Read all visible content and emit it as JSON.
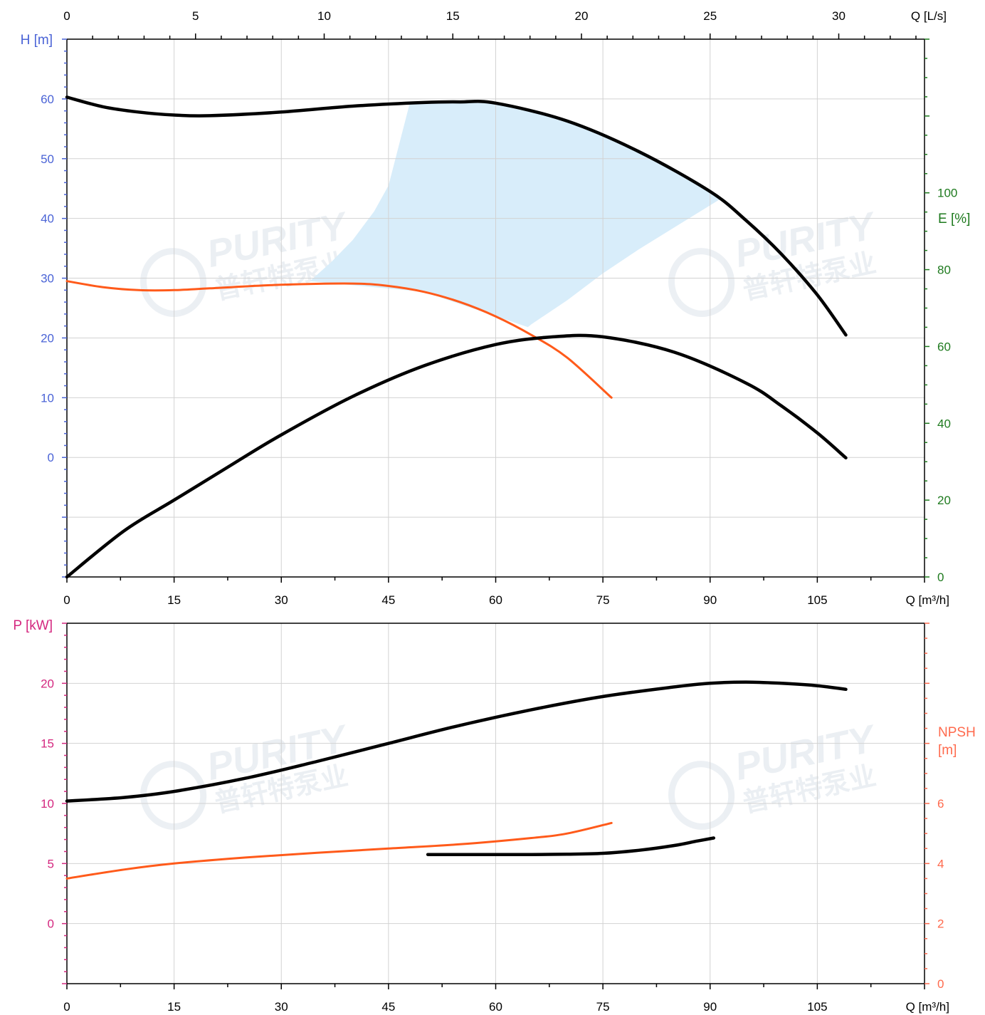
{
  "watermark": {
    "brand": "PURITY",
    "brand_cn": "普轩特泵业"
  },
  "colors": {
    "head_axis": "#4a63d6",
    "eff_axis": "#1e7a1e",
    "power_axis": "#d4277f",
    "npsh_axis": "#ff6a4d",
    "black_curve": "#000000",
    "orange_curve": "#ff5a1a",
    "operating_region": "#d8edfa",
    "grid": "#d2d2d2"
  },
  "chart_data": [
    {
      "type": "line",
      "title": "",
      "x_axis": {
        "label": "Q [m³/h]",
        "range": [
          0,
          120
        ],
        "ticks": [
          0,
          15,
          30,
          45,
          60,
          75,
          90,
          105
        ]
      },
      "x2_axis": {
        "label": "Q [L/s]",
        "range": [
          0,
          33.333
        ],
        "ticks": [
          0,
          5,
          10,
          15,
          20,
          25,
          30
        ]
      },
      "y_axis": {
        "label": "H [m]",
        "range": [
          -20,
          70
        ],
        "ticks": [
          0,
          10,
          20,
          30,
          40,
          50,
          60
        ]
      },
      "y2_axis": {
        "label": "E [%]",
        "range": [
          0,
          140
        ],
        "ticks": [
          0,
          20,
          40,
          60,
          80,
          100
        ]
      },
      "grid": true,
      "series": [
        {
          "axis": "H",
          "color": "black",
          "x": [
            0,
            5,
            10,
            15,
            20,
            30,
            40,
            50,
            55,
            60,
            70,
            80,
            90,
            95,
            100,
            105,
            109
          ],
          "y": [
            60.3,
            58.7,
            57.8,
            57.3,
            57.2,
            57.8,
            58.8,
            59.4,
            59.5,
            59.3,
            56.3,
            51.2,
            44.5,
            39.7,
            34.0,
            27.2,
            20.5
          ]
        },
        {
          "axis": "H",
          "color": "orange",
          "x": [
            0,
            5,
            10,
            15,
            20,
            30,
            40,
            45,
            50,
            55,
            60,
            65,
            70,
            76.2
          ],
          "y": [
            29.5,
            28.5,
            28.0,
            28.0,
            28.3,
            28.9,
            29.1,
            28.7,
            27.7,
            26.0,
            23.6,
            20.5,
            16.7,
            10.0
          ]
        },
        {
          "axis": "E",
          "color": "black",
          "x": [
            0,
            8,
            15,
            22,
            30,
            40,
            50,
            60,
            68,
            75,
            85,
            95,
            100,
            105,
            109
          ],
          "y": [
            0,
            12,
            20,
            28,
            37,
            47,
            55,
            60.5,
            62.5,
            62.5,
            58.5,
            50.5,
            44.5,
            37.5,
            31
          ]
        }
      ],
      "operating_region": {
        "axis": "H",
        "polygon": [
          [
            34,
            29.5
          ],
          [
            37,
            32.7
          ],
          [
            40,
            36.4
          ],
          [
            43,
            41.2
          ],
          [
            45,
            45.5
          ],
          [
            48,
            59.4
          ],
          [
            60,
            59.3
          ],
          [
            70,
            56.3
          ],
          [
            80,
            51.2
          ],
          [
            91.5,
            43.3
          ],
          [
            85,
            38.5
          ],
          [
            80,
            34.8
          ],
          [
            75,
            30.8
          ],
          [
            70,
            26.3
          ],
          [
            65,
            22.3
          ],
          [
            64.5,
            21.8
          ],
          [
            50,
            27.7
          ]
        ]
      }
    },
    {
      "type": "line",
      "title": "",
      "x_axis": {
        "label": "Q [m³/h]",
        "range": [
          0,
          120
        ],
        "ticks": [
          0,
          15,
          30,
          45,
          60,
          75,
          90,
          105
        ]
      },
      "y_axis": {
        "label": "P [kW]",
        "range": [
          -5,
          25
        ],
        "ticks": [
          0,
          5,
          10,
          15,
          20
        ]
      },
      "y2_axis": {
        "label_line1": "NPSH",
        "label_line2": "[m]",
        "range": [
          0,
          12
        ],
        "ticks": [
          0,
          2,
          4,
          6
        ]
      },
      "grid": true,
      "series": [
        {
          "axis": "P",
          "color": "black",
          "x": [
            0,
            8,
            15,
            25,
            35,
            45,
            55,
            65,
            75,
            85,
            90,
            95,
            100,
            105,
            109
          ],
          "y": [
            10.2,
            10.5,
            11.0,
            12.1,
            13.5,
            15.0,
            16.5,
            17.8,
            18.9,
            19.7,
            20.0,
            20.1,
            20.0,
            19.8,
            19.5
          ]
        },
        {
          "axis": "NPSH",
          "color": "black",
          "x": [
            50.5,
            55,
            60,
            65,
            70,
            75,
            80,
            85,
            88,
            90.5
          ],
          "y": [
            4.3,
            4.3,
            4.3,
            4.3,
            4.31,
            4.34,
            4.44,
            4.6,
            4.74,
            4.85
          ]
        },
        {
          "axis": "NPSH",
          "color": "orange",
          "x": [
            0,
            8,
            15,
            25,
            35,
            45,
            55,
            65,
            70,
            76.2
          ],
          "y": [
            3.5,
            3.8,
            4.0,
            4.2,
            4.36,
            4.5,
            4.64,
            4.85,
            5.0,
            5.35
          ]
        }
      ]
    }
  ]
}
